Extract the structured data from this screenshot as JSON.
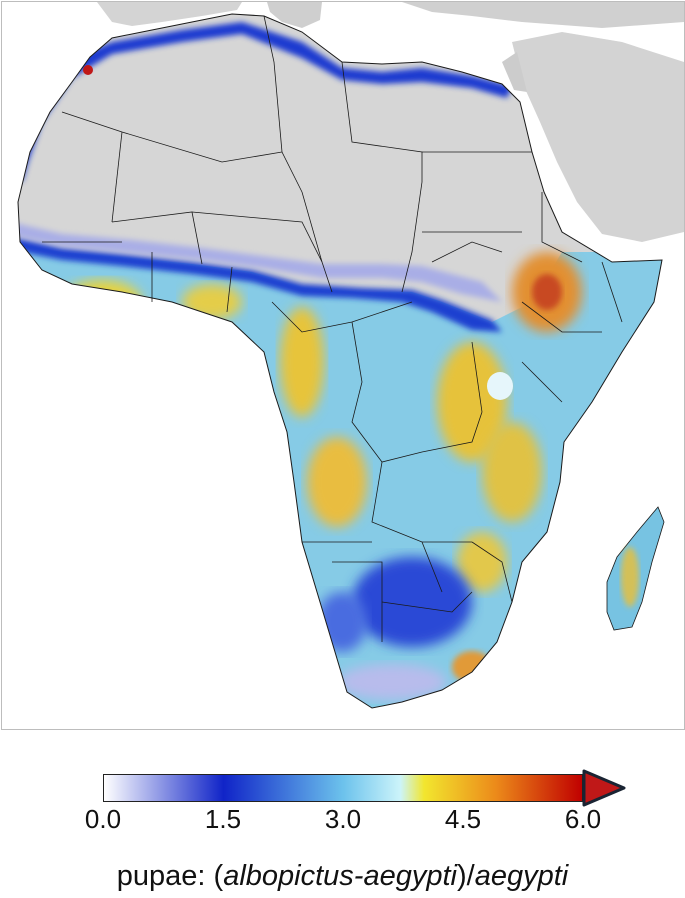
{
  "map": {
    "region": "Africa",
    "variable": "pupae ratio",
    "no_data_color": "#d6d6d6",
    "border_color": "#1a1a1a"
  },
  "legend": {
    "ticks": [
      "0.0",
      "1.5",
      "3.0",
      "4.5",
      "6.0"
    ],
    "min": 0.0,
    "max": 6.0,
    "extend": "max",
    "over_color": "#c01818",
    "gradient": [
      {
        "stop": 0.0,
        "color": "#ffffff"
      },
      {
        "stop": 0.25,
        "color": "#1024c8"
      },
      {
        "stop": 0.5,
        "color": "#6cc2ec"
      },
      {
        "stop": 0.62,
        "color": "#ccf4fa"
      },
      {
        "stop": 0.67,
        "color": "#f2e62e"
      },
      {
        "stop": 0.82,
        "color": "#ec8a1a"
      },
      {
        "stop": 1.0,
        "color": "#c00000"
      }
    ],
    "title_parts": [
      {
        "text": "pupae: (",
        "italic": false
      },
      {
        "text": "albopictus-aegypti",
        "italic": true
      },
      {
        "text": ")/",
        "italic": false
      },
      {
        "text": "aegypti",
        "italic": true
      }
    ]
  }
}
